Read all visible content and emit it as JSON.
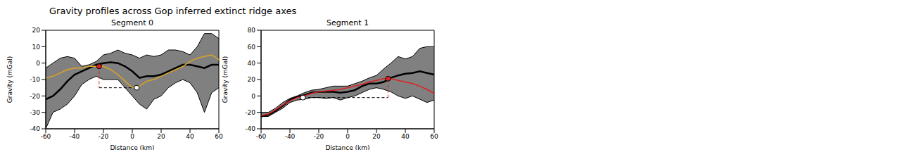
{
  "title": "Gravity profiles across Gop inferred extinct ridge axes",
  "chart_data": [
    {
      "type": "line",
      "title": "Segment 0",
      "x_label": "Distance (km)",
      "y_label": "Gravity (mGal)",
      "xlim": [
        -60,
        60
      ],
      "xticks": [
        -60,
        -40,
        -20,
        0,
        20,
        40,
        60
      ],
      "ylim": [
        -40,
        20
      ],
      "yticks": [
        -40,
        -30,
        -20,
        -10,
        0,
        10,
        20
      ],
      "x": [
        -60,
        -55,
        -50,
        -45,
        -40,
        -35,
        -30,
        -25,
        -20,
        -15,
        -10,
        -5,
        0,
        5,
        10,
        15,
        20,
        25,
        30,
        35,
        40,
        45,
        50,
        55,
        60
      ],
      "band": {
        "color": "#808080",
        "lower": [
          -40,
          -30,
          -28,
          -25,
          -20,
          -13,
          -10,
          -8,
          -10,
          -10,
          -10,
          -15,
          -20,
          -25,
          -28,
          -22,
          -20,
          -15,
          -12,
          -10,
          -12,
          -18,
          -30,
          -18,
          -15
        ],
        "upper": [
          -3,
          0,
          3,
          4,
          3,
          -2,
          -1,
          1,
          5,
          6,
          8,
          6,
          5,
          3,
          5,
          4,
          5,
          8,
          8,
          7,
          5,
          10,
          18,
          18,
          15
        ]
      },
      "series": [
        {
          "color": "#000000",
          "line_style": "solid",
          "values": [
            -22,
            -20,
            -16,
            -11,
            -7,
            -5,
            -3,
            -1,
            0,
            0.5,
            0,
            -2,
            -5,
            -9,
            -8,
            -8,
            -7,
            -5,
            -3,
            -1,
            -1,
            -2,
            -3,
            -1,
            -1
          ]
        },
        {
          "color": "#daa520",
          "line_style": "solid",
          "values": [
            -9,
            -8,
            -6,
            -4,
            -3,
            -3,
            -2,
            -2,
            -2,
            -4,
            -7,
            -11,
            -15,
            -14,
            -11,
            -10,
            -8,
            -6,
            -4,
            -2,
            1,
            3,
            4,
            5,
            2
          ]
        }
      ],
      "markers": [
        {
          "x": -23,
          "y": -2,
          "color": "#dd2222"
        },
        {
          "x": 3,
          "y": -15,
          "color": "#ffffff"
        }
      ],
      "segments": [
        {
          "x": [
            -23,
            3
          ],
          "y": [
            -15,
            -15
          ],
          "color": "#000000",
          "line_style": "dashed"
        },
        {
          "x": [
            -23,
            -23
          ],
          "y": [
            -2,
            -15
          ],
          "color": "#dd2222",
          "line_style": "dashed"
        }
      ]
    },
    {
      "type": "line",
      "title": "Segment 1",
      "x_label": "Distance (km)",
      "y_label": "Gravity (mGal)",
      "xlim": [
        -60,
        60
      ],
      "xticks": [
        -60,
        -40,
        -20,
        0,
        20,
        40,
        60
      ],
      "ylim": [
        -40,
        80
      ],
      "yticks": [
        -40,
        -20,
        0,
        20,
        40,
        60,
        80
      ],
      "x": [
        -60,
        -55,
        -50,
        -45,
        -40,
        -35,
        -30,
        -25,
        -20,
        -15,
        -10,
        -5,
        0,
        5,
        10,
        15,
        20,
        25,
        30,
        35,
        40,
        45,
        50,
        55,
        60
      ],
      "band": {
        "color": "#808080",
        "lower": [
          -25,
          -25,
          -20,
          -15,
          -8,
          -5,
          -4,
          -2,
          -2,
          -3,
          -2,
          -5,
          -2,
          0,
          4,
          8,
          10,
          8,
          5,
          0,
          -3,
          0,
          -4,
          -8,
          -5
        ],
        "upper": [
          -20,
          -20,
          -15,
          -8,
          -3,
          0,
          4,
          7,
          8,
          10,
          12,
          12,
          12,
          15,
          18,
          22,
          25,
          33,
          40,
          48,
          45,
          48,
          58,
          60,
          60
        ]
      },
      "series": [
        {
          "color": "#000000",
          "line_style": "solid",
          "values": [
            -25,
            -23,
            -18,
            -12,
            -5,
            -1,
            1,
            4,
            5,
            5,
            5,
            4,
            5,
            7,
            12,
            15,
            15,
            17,
            22,
            25,
            27,
            28,
            30,
            28,
            26
          ]
        },
        {
          "color": "#dd2222",
          "line_style": "solid",
          "values": [
            -24,
            -22,
            -17,
            -11,
            -6,
            -2,
            0,
            3,
            5,
            6,
            7,
            8,
            10,
            12,
            14,
            17,
            19,
            21,
            21,
            19,
            17,
            15,
            12,
            8,
            3
          ]
        }
      ],
      "markers": [
        {
          "x": -31,
          "y": -2,
          "color": "#ffffff"
        },
        {
          "x": 28,
          "y": 21,
          "color": "#dd2222"
        }
      ],
      "segments": [
        {
          "x": [
            -31,
            28
          ],
          "y": [
            -2,
            -2
          ],
          "color": "#000000",
          "line_style": "dashed"
        },
        {
          "x": [
            28,
            28
          ],
          "y": [
            -2,
            21
          ],
          "color": "#dd2222",
          "line_style": "dashed"
        }
      ]
    }
  ]
}
